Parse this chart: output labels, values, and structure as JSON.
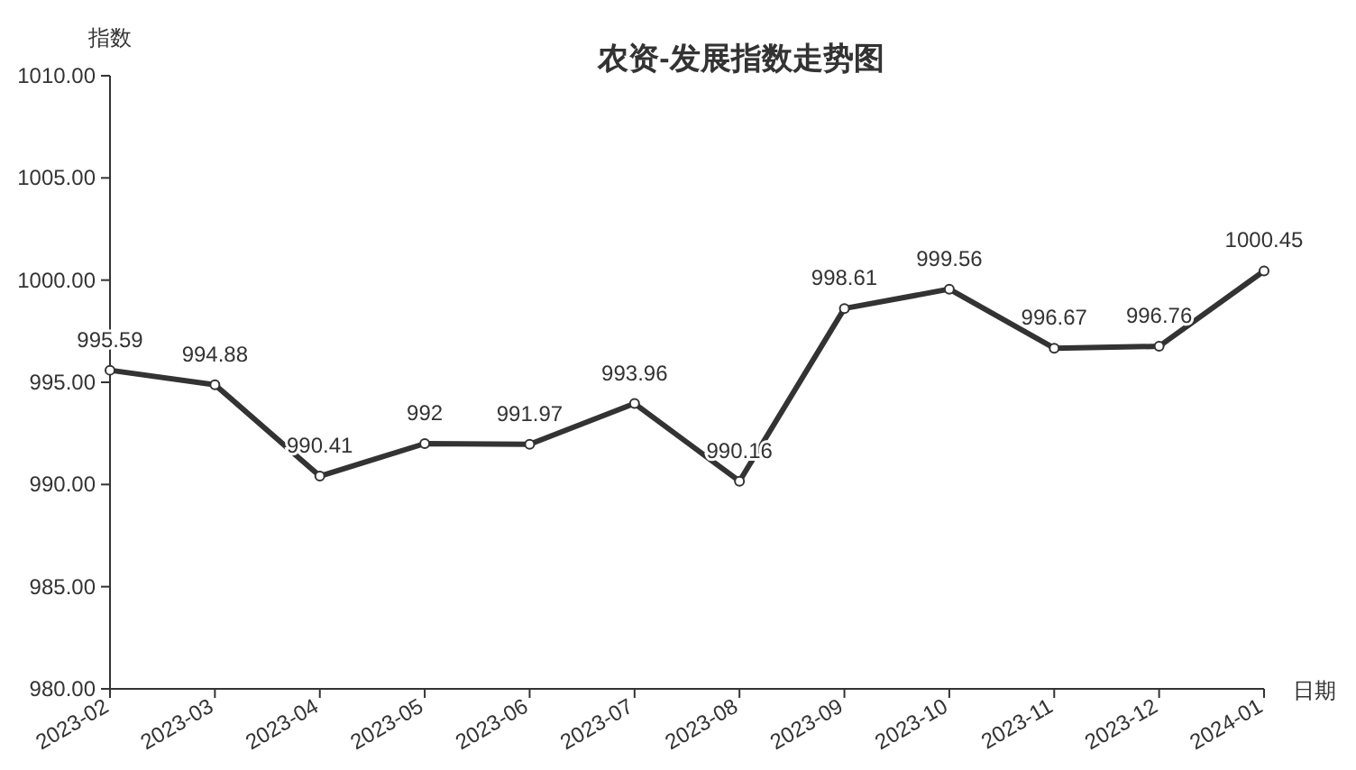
{
  "chart_data": {
    "type": "line",
    "title": "农资-发展指数走势图",
    "xlabel": "日期",
    "ylabel": "指数",
    "categories": [
      "2023-02",
      "2023-03",
      "2023-04",
      "2023-05",
      "2023-06",
      "2023-07",
      "2023-08",
      "2023-09",
      "2023-10",
      "2023-11",
      "2023-12",
      "2024-01"
    ],
    "series": [
      {
        "color": "#333333",
        "values": [
          995.59,
          994.88,
          990.41,
          992,
          991.97,
          993.96,
          990.16,
          998.61,
          999.56,
          996.67,
          996.76,
          1000.45
        ]
      }
    ],
    "ylim": [
      980,
      1010
    ],
    "yticks": [
      {
        "value": 980,
        "label": "980.00"
      },
      {
        "value": 985,
        "label": "985.00"
      },
      {
        "value": 990,
        "label": "990.00"
      },
      {
        "value": 995,
        "label": "995.00"
      },
      {
        "value": 1000,
        "label": "1000.00"
      },
      {
        "value": 1005,
        "label": "1005.00"
      },
      {
        "value": 1010,
        "label": "1010.00"
      }
    ],
    "data_labels": true,
    "marker": "circle",
    "line_style": "solid",
    "grid": false
  }
}
